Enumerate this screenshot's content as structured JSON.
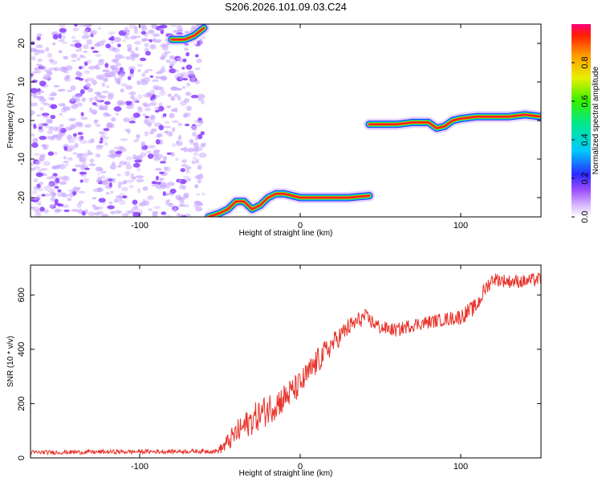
{
  "title": "S206.2026.101.09.03.C24",
  "colors": {
    "speck_purple": "#8a3cff",
    "speck_light": "#c9a8ff",
    "snr_line": "#e8332a",
    "frame": "#000000"
  },
  "chart_data": [
    {
      "type": "heatmap",
      "xlabel": "Height of straight line (km)",
      "ylabel": "Frequency (Hz)",
      "xlim": [
        -168,
        150
      ],
      "ylim": [
        -25,
        25
      ],
      "xticks": [
        -100,
        0,
        100
      ],
      "yticks": [
        -20,
        -10,
        0,
        10,
        20
      ],
      "grid": false,
      "noise_region": {
        "x": [
          -168,
          -60
        ],
        "y": [
          -25,
          25
        ]
      },
      "ridge": {
        "x": [
          -57,
          -50,
          -45,
          -40,
          -35,
          -30,
          -25,
          -20,
          -15,
          -10,
          -5,
          0,
          10,
          20,
          30,
          43
        ],
        "y": [
          -25,
          -24,
          -23,
          -21,
          -21,
          -23,
          -22,
          -20,
          -19,
          -19,
          -19.5,
          -20,
          -20,
          -20,
          -20,
          -19.5
        ]
      },
      "ridge2": {
        "x": [
          43,
          50,
          60,
          70,
          80,
          85,
          90,
          95,
          100,
          110,
          120,
          130,
          140,
          150
        ],
        "y": [
          -1,
          -1,
          -1,
          -0.5,
          -0.5,
          -2,
          -1.5,
          0,
          0.5,
          1,
          1,
          1,
          1.5,
          1
        ]
      },
      "top_fragment": {
        "x": [
          -80,
          -72,
          -66,
          -60
        ],
        "y": [
          21,
          21,
          22,
          24
        ]
      },
      "colorbar": {
        "label": "Normalized spectral amplitude",
        "range": [
          0,
          1
        ],
        "ticks": [
          "0.0",
          "0.2",
          "0.4",
          "0.6",
          "0.8"
        ]
      }
    },
    {
      "type": "line",
      "xlabel": "Height of straight line (km)",
      "ylabel": "SNR (10 * v/v)",
      "xlim": [
        -168,
        150
      ],
      "ylim": [
        0,
        710
      ],
      "xticks": [
        -100,
        0,
        100
      ],
      "yticks": [
        0,
        200,
        400,
        600
      ],
      "grid": false,
      "series": [
        {
          "trend_x": [
            -168,
            -52,
            -48,
            -40,
            -30,
            -20,
            -10,
            0,
            10,
            20,
            30,
            40,
            50,
            60,
            70,
            80,
            90,
            100,
            110,
            115,
            120,
            130,
            140,
            150
          ],
          "trend_y": [
            20,
            25,
            40,
            90,
            140,
            180,
            220,
            270,
            350,
            420,
            480,
            520,
            480,
            470,
            490,
            500,
            510,
            520,
            560,
            620,
            660,
            650,
            650,
            660
          ],
          "noise_amplitude": [
            8,
            8,
            25,
            45,
            55,
            60,
            55,
            50,
            50,
            40,
            35,
            30,
            25,
            25,
            25,
            25,
            25,
            30,
            30,
            30,
            25,
            25,
            25,
            25
          ]
        }
      ]
    }
  ]
}
